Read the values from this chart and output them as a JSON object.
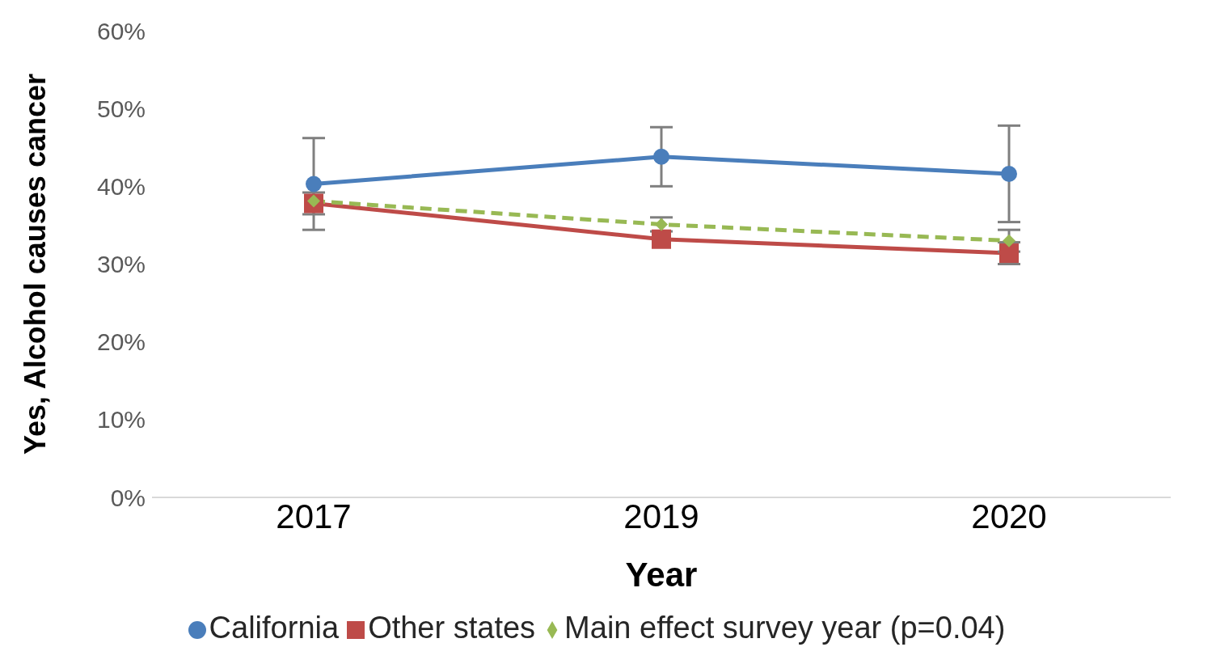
{
  "chart_data": {
    "type": "line",
    "xlabel": "Year",
    "ylabel": "Yes, Alcohol causes cancer",
    "categories": [
      "2017",
      "2019",
      "2020"
    ],
    "series": [
      {
        "name": "California",
        "color": "#4a7ebb",
        "values": [
          40.3,
          43.8,
          41.6
        ],
        "errors": [
          5.9,
          3.8,
          6.2
        ],
        "marker": "circle",
        "line_style": "solid"
      },
      {
        "name": "Other states",
        "color": "#be4b48",
        "values": [
          37.8,
          33.2,
          31.4
        ],
        "errors": [
          1.4,
          null,
          1.4
        ],
        "marker": "square",
        "line_style": "solid"
      },
      {
        "name": "Main effect survey year (p=0.04)",
        "color": "#98b954",
        "values": [
          38.1,
          35.1,
          33.0
        ],
        "errors": [
          null,
          0.9,
          1.4
        ],
        "marker": "diamond",
        "line_style": "dashed"
      }
    ],
    "ylim": [
      0,
      60
    ],
    "yticks": [
      {
        "value": 0,
        "label": "0%"
      },
      {
        "value": 10,
        "label": "10%"
      },
      {
        "value": 20,
        "label": "20%"
      },
      {
        "value": 30,
        "label": "30%"
      },
      {
        "value": 40,
        "label": "40%"
      },
      {
        "value": 50,
        "label": "50%"
      },
      {
        "value": 60,
        "label": "60%"
      }
    ],
    "grid": false,
    "legend": "bottom"
  }
}
